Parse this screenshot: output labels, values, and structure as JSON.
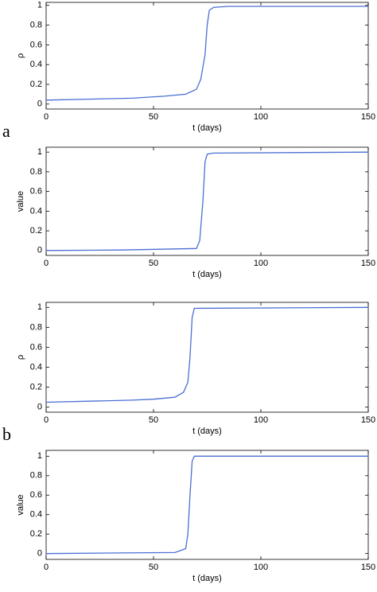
{
  "chart_data": [
    {
      "type": "line",
      "ylabel": "ρ",
      "xlabel": "t (days)",
      "panel_label": "a",
      "color": "#4a6fd4",
      "x": [
        0,
        20,
        40,
        55,
        65,
        70,
        72,
        74,
        75,
        76,
        78,
        85,
        150
      ],
      "values": [
        0.04,
        0.05,
        0.06,
        0.08,
        0.1,
        0.15,
        0.25,
        0.5,
        0.8,
        0.95,
        0.98,
        0.99,
        0.99
      ],
      "xlim": [
        0,
        150
      ],
      "ylim": [
        -0.05,
        1.03
      ],
      "xticks": [
        0,
        50,
        100,
        150
      ],
      "yticks": [
        0,
        0.2,
        0.4,
        0.6,
        0.8,
        1
      ]
    },
    {
      "type": "line",
      "ylabel": "value",
      "xlabel": "t (days)",
      "color": "#4a6fd4",
      "x": [
        0,
        35,
        70,
        71.5,
        73,
        74,
        75,
        78,
        150
      ],
      "values": [
        0,
        0.005,
        0.02,
        0.1,
        0.5,
        0.9,
        0.98,
        0.99,
        1
      ],
      "xlim": [
        0,
        150
      ],
      "ylim": [
        -0.05,
        1.05
      ],
      "xticks": [
        0,
        50,
        100,
        150
      ],
      "yticks": [
        0,
        0.2,
        0.4,
        0.6,
        0.8,
        1
      ]
    },
    {
      "type": "line",
      "ylabel": "ρ",
      "xlabel": "t (days)",
      "panel_label": "b",
      "color": "#4a6fd4",
      "x": [
        0,
        20,
        40,
        50,
        60,
        64,
        66,
        67,
        68,
        69,
        150
      ],
      "values": [
        0.05,
        0.06,
        0.07,
        0.08,
        0.1,
        0.15,
        0.25,
        0.5,
        0.9,
        0.99,
        1
      ],
      "xlim": [
        0,
        150
      ],
      "ylim": [
        -0.05,
        1.05
      ],
      "xticks": [
        0,
        50,
        100,
        150
      ],
      "yticks": [
        0,
        0.2,
        0.4,
        0.6,
        0.8,
        1
      ]
    },
    {
      "type": "line",
      "ylabel": "value",
      "xlabel": "t (days)",
      "color": "#4a6fd4",
      "x": [
        0,
        30,
        60,
        65,
        66,
        67,
        68,
        69,
        150
      ],
      "values": [
        0,
        0.005,
        0.01,
        0.05,
        0.2,
        0.6,
        0.95,
        1,
        1
      ],
      "xlim": [
        0,
        150
      ],
      "ylim": [
        -0.06,
        1.06
      ],
      "xticks": [
        0,
        50,
        100,
        150
      ],
      "yticks": [
        0,
        0.2,
        0.4,
        0.6,
        0.8,
        1
      ]
    }
  ]
}
